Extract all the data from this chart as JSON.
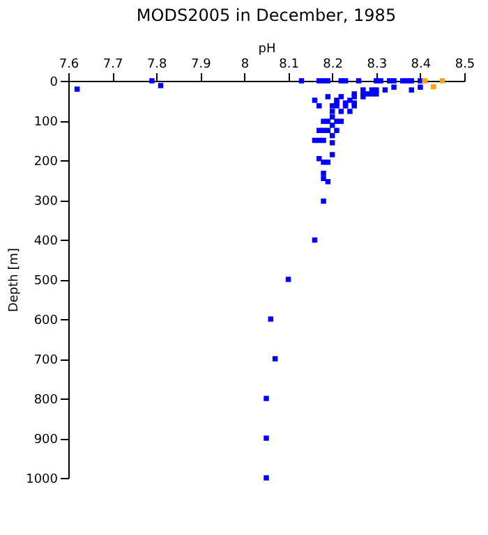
{
  "chart_data": {
    "type": "scatter",
    "title": "MODS2005 in December, 1985",
    "xlabel": "pH",
    "ylabel": "Depth [m]",
    "xlim": [
      7.6,
      8.5
    ],
    "xticks": [
      7.6,
      7.7,
      7.8,
      7.9,
      8,
      8.1,
      8.2,
      8.3,
      8.4,
      8.5
    ],
    "ylim": [
      1000,
      0
    ],
    "yticks": [
      0,
      100,
      200,
      300,
      400,
      500,
      600,
      700,
      800,
      900,
      1000
    ],
    "grid": false,
    "marker": "square",
    "series": [
      {
        "color": "#0000ff",
        "x": [
          7.79,
          8.13,
          8.17,
          8.18,
          8.19,
          8.22,
          8.23,
          8.26,
          8.3,
          8.31,
          8.33,
          8.34,
          8.36,
          8.37,
          8.38,
          8.4,
          7.62,
          7.81,
          8.34,
          8.4,
          8.27,
          8.29,
          8.3,
          8.32,
          8.38,
          8.25,
          8.27,
          8.28,
          8.29,
          8.3,
          8.19,
          8.22,
          8.25,
          8.27,
          8.16,
          8.21,
          8.24,
          8.21,
          8.23,
          8.25,
          8.17,
          8.2,
          8.21,
          8.23,
          8.25,
          8.2,
          8.22,
          8.24,
          8.2,
          8.18,
          8.19,
          8.21,
          8.22,
          8.2,
          8.17,
          8.18,
          8.19,
          8.21,
          8.2,
          8.16,
          8.17,
          8.18,
          8.2,
          8.2,
          8.17,
          8.18,
          8.19,
          8.18,
          8.18,
          8.19,
          8.18,
          8.16,
          8.1,
          8.06,
          8.07,
          8.05,
          8.05,
          8.05
        ],
        "values": [
          0,
          0,
          0,
          0,
          0,
          0,
          0,
          0,
          0,
          0,
          0,
          0,
          0,
          0,
          0,
          0,
          21,
          12,
          16,
          16,
          23,
          23,
          23,
          23,
          23,
          33,
          33,
          33,
          33,
          33,
          40,
          40,
          40,
          40,
          49,
          49,
          49,
          56,
          56,
          56,
          63,
          63,
          63,
          63,
          63,
          77,
          77,
          77,
          91,
          102,
          102,
          102,
          102,
          112,
          125,
          125,
          125,
          125,
          138,
          150,
          150,
          150,
          156,
          186,
          196,
          205,
          205,
          233,
          246,
          254,
          303,
          401,
          500,
          600,
          700,
          800,
          900,
          1000
        ]
      },
      {
        "color": "#ffa500",
        "x": [
          8.41,
          8.45,
          8.43
        ],
        "values": [
          0,
          0,
          15
        ]
      }
    ]
  }
}
